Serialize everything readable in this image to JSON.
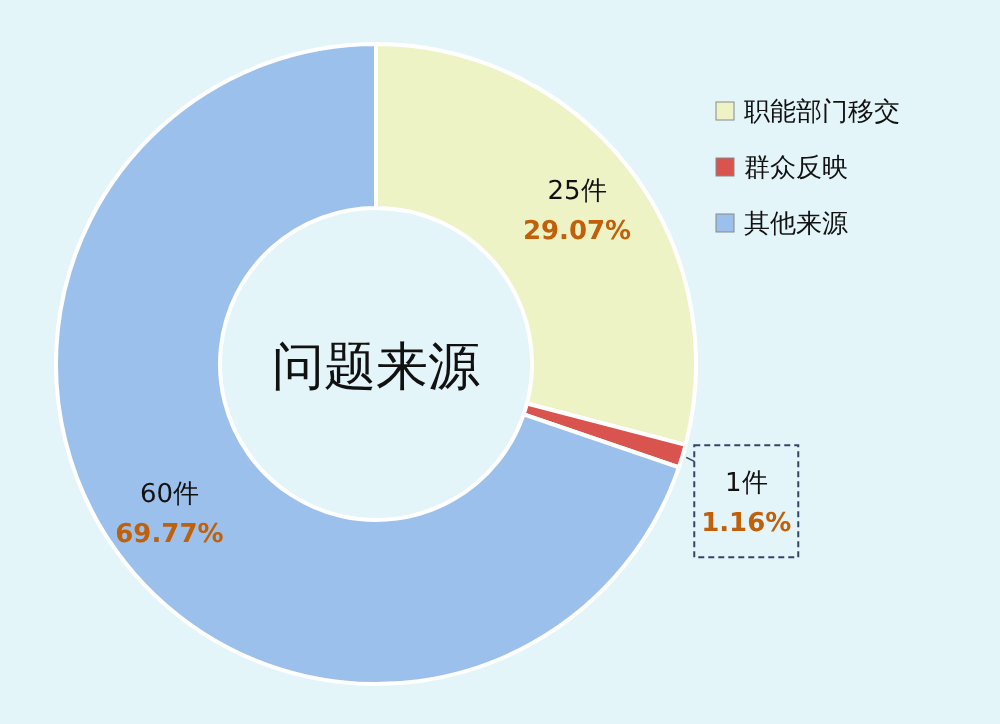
{
  "chart_data": {
    "type": "donut",
    "title": "问题来源",
    "categories": [
      "职能部门移交",
      "群众反映",
      "其他来源"
    ],
    "values": [
      25,
      1,
      60
    ],
    "colors": [
      "#eef3c6",
      "#d9534f",
      "#9cc0ec"
    ],
    "value_labels": [
      "25件",
      "1件",
      "60件"
    ],
    "annotations": [
      {
        "text": "29.07%",
        "x": "职能部门移交"
      },
      {
        "text": "1.16%",
        "x": "群众反映"
      },
      {
        "text": "69.77%",
        "x": "其他来源"
      }
    ],
    "legend": "right"
  }
}
